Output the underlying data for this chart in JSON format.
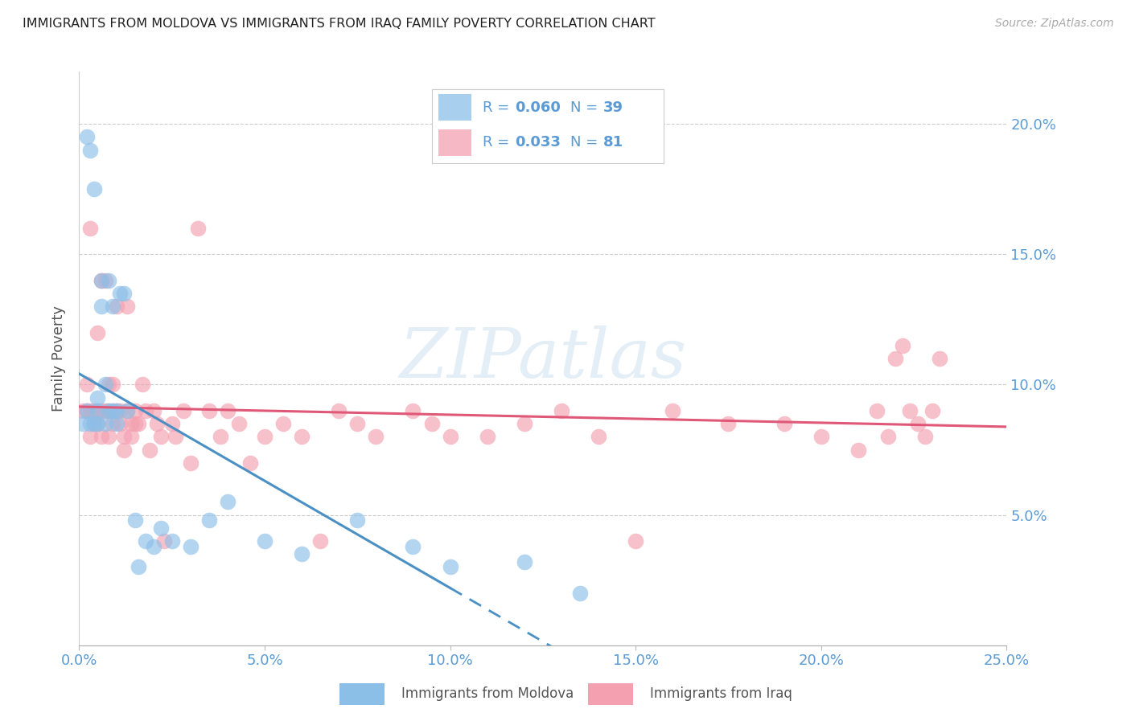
{
  "title": "IMMIGRANTS FROM MOLDOVA VS IMMIGRANTS FROM IRAQ FAMILY POVERTY CORRELATION CHART",
  "source": "Source: ZipAtlas.com",
  "ylabel": "Family Poverty",
  "moldova_R": 0.06,
  "moldova_N": 39,
  "iraq_R": 0.033,
  "iraq_N": 81,
  "moldova_color": "#8bbfe8",
  "iraq_color": "#f4a0b0",
  "moldova_line_color": "#4a90c4",
  "iraq_line_color": "#e05878",
  "watermark_text": "ZIPatlas",
  "xlim": [
    0,
    0.25
  ],
  "ylim": [
    0,
    0.22
  ],
  "x_ticks": [
    0.0,
    0.05,
    0.1,
    0.15,
    0.2,
    0.25
  ],
  "y_ticks": [
    0.05,
    0.1,
    0.15,
    0.2
  ],
  "moldova_x": [
    0.001,
    0.002,
    0.002,
    0.003,
    0.003,
    0.004,
    0.004,
    0.005,
    0.005,
    0.005,
    0.006,
    0.006,
    0.007,
    0.007,
    0.008,
    0.008,
    0.009,
    0.009,
    0.01,
    0.01,
    0.011,
    0.012,
    0.013,
    0.015,
    0.016,
    0.018,
    0.02,
    0.022,
    0.025,
    0.03,
    0.035,
    0.04,
    0.05,
    0.06,
    0.075,
    0.09,
    0.1,
    0.12,
    0.135
  ],
  "moldova_y": [
    0.085,
    0.09,
    0.195,
    0.085,
    0.19,
    0.085,
    0.175,
    0.095,
    0.09,
    0.085,
    0.14,
    0.13,
    0.1,
    0.085,
    0.09,
    0.14,
    0.13,
    0.09,
    0.09,
    0.085,
    0.135,
    0.135,
    0.09,
    0.048,
    0.03,
    0.04,
    0.038,
    0.045,
    0.04,
    0.038,
    0.048,
    0.055,
    0.04,
    0.035,
    0.048,
    0.038,
    0.03,
    0.032,
    0.02
  ],
  "iraq_x": [
    0.001,
    0.002,
    0.002,
    0.003,
    0.003,
    0.003,
    0.004,
    0.004,
    0.005,
    0.005,
    0.005,
    0.006,
    0.006,
    0.006,
    0.007,
    0.007,
    0.008,
    0.008,
    0.008,
    0.009,
    0.009,
    0.009,
    0.01,
    0.01,
    0.011,
    0.011,
    0.012,
    0.012,
    0.013,
    0.013,
    0.014,
    0.014,
    0.015,
    0.015,
    0.016,
    0.017,
    0.018,
    0.019,
    0.02,
    0.021,
    0.022,
    0.023,
    0.025,
    0.026,
    0.028,
    0.03,
    0.032,
    0.035,
    0.038,
    0.04,
    0.043,
    0.046,
    0.05,
    0.055,
    0.06,
    0.065,
    0.07,
    0.075,
    0.08,
    0.09,
    0.095,
    0.1,
    0.11,
    0.12,
    0.13,
    0.14,
    0.15,
    0.16,
    0.175,
    0.19,
    0.2,
    0.21,
    0.215,
    0.218,
    0.22,
    0.222,
    0.224,
    0.226,
    0.228,
    0.23,
    0.232
  ],
  "iraq_y": [
    0.09,
    0.1,
    0.09,
    0.16,
    0.09,
    0.08,
    0.09,
    0.085,
    0.12,
    0.09,
    0.085,
    0.14,
    0.09,
    0.08,
    0.14,
    0.09,
    0.09,
    0.08,
    0.1,
    0.09,
    0.085,
    0.1,
    0.13,
    0.09,
    0.09,
    0.085,
    0.08,
    0.075,
    0.13,
    0.09,
    0.085,
    0.08,
    0.09,
    0.085,
    0.085,
    0.1,
    0.09,
    0.075,
    0.09,
    0.085,
    0.08,
    0.04,
    0.085,
    0.08,
    0.09,
    0.07,
    0.16,
    0.09,
    0.08,
    0.09,
    0.085,
    0.07,
    0.08,
    0.085,
    0.08,
    0.04,
    0.09,
    0.085,
    0.08,
    0.09,
    0.085,
    0.08,
    0.08,
    0.085,
    0.09,
    0.08,
    0.04,
    0.09,
    0.085,
    0.085,
    0.08,
    0.075,
    0.09,
    0.08,
    0.11,
    0.115,
    0.09,
    0.085,
    0.08,
    0.09,
    0.11
  ]
}
